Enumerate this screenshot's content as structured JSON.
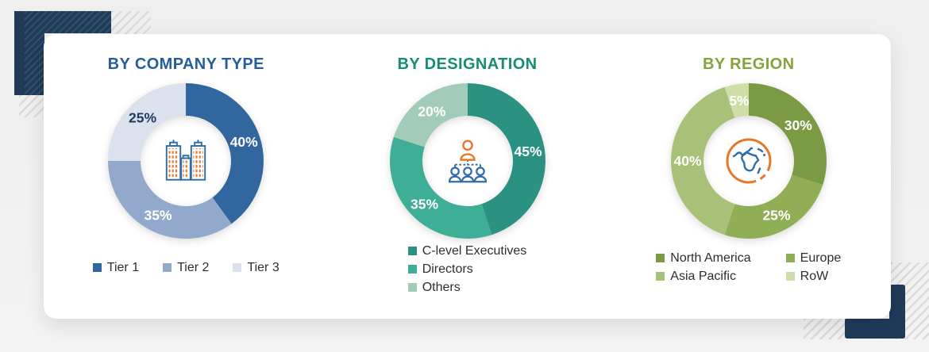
{
  "page": {
    "background": "#F0F0F0",
    "card_background": "#FFFFFF"
  },
  "decor": {
    "navy": "#1F3B58",
    "navy_hatch_light": "#32516F",
    "stripe_gray": "#DBDBDB",
    "icon_orange": "#E8772A",
    "icon_blue": "#2E6DA8"
  },
  "chart_data": [
    {
      "type": "pie",
      "donut": true,
      "title": "BY COMPANY TYPE",
      "title_color": "#265E9A",
      "labels": [
        "Tier 1",
        "Tier 2",
        "Tier 3"
      ],
      "values": [
        40,
        35,
        25
      ],
      "value_labels": [
        "40%",
        "35%",
        "25%"
      ],
      "colors": [
        "#31679E",
        "#92A9CC",
        "#DBE1ED"
      ],
      "value_label_colors": [
        "#FFFFFF",
        "#FFFFFF",
        "#22395E"
      ],
      "start_angle_deg": 0,
      "legend_layout": "row",
      "legend_position": "bottom",
      "center_icon": "buildings-icon"
    },
    {
      "type": "pie",
      "donut": true,
      "title": "BY DESIGNATION",
      "title_color": "#148C76",
      "labels": [
        "C-level Executives",
        "Directors",
        "Others"
      ],
      "values": [
        45,
        35,
        20
      ],
      "value_labels": [
        "45%",
        "35%",
        "20%"
      ],
      "colors": [
        "#2B9181",
        "#3FAE97",
        "#A3CBB9"
      ],
      "value_label_colors": [
        "#FFFFFF",
        "#FFFFFF",
        "#FFFFFF"
      ],
      "start_angle_deg": 0,
      "legend_layout": "column",
      "legend_position": "bottom",
      "center_icon": "org-chart-icon"
    },
    {
      "type": "pie",
      "donut": true,
      "title": "BY REGION",
      "title_color": "#85A33B",
      "labels": [
        "North America",
        "Europe",
        "Asia Pacific",
        "RoW"
      ],
      "values": [
        30,
        25,
        40,
        5
      ],
      "value_labels": [
        "30%",
        "25%",
        "40%",
        "5%"
      ],
      "colors": [
        "#7A9B44",
        "#90AE55",
        "#A8C178",
        "#CFDEA8"
      ],
      "value_label_colors": [
        "#FFFFFF",
        "#FFFFFF",
        "#FFFFFF",
        "#FFFFFF"
      ],
      "start_angle_deg": 0,
      "legend_layout": "grid",
      "legend_position": "bottom",
      "center_icon": "globe-icon"
    }
  ]
}
